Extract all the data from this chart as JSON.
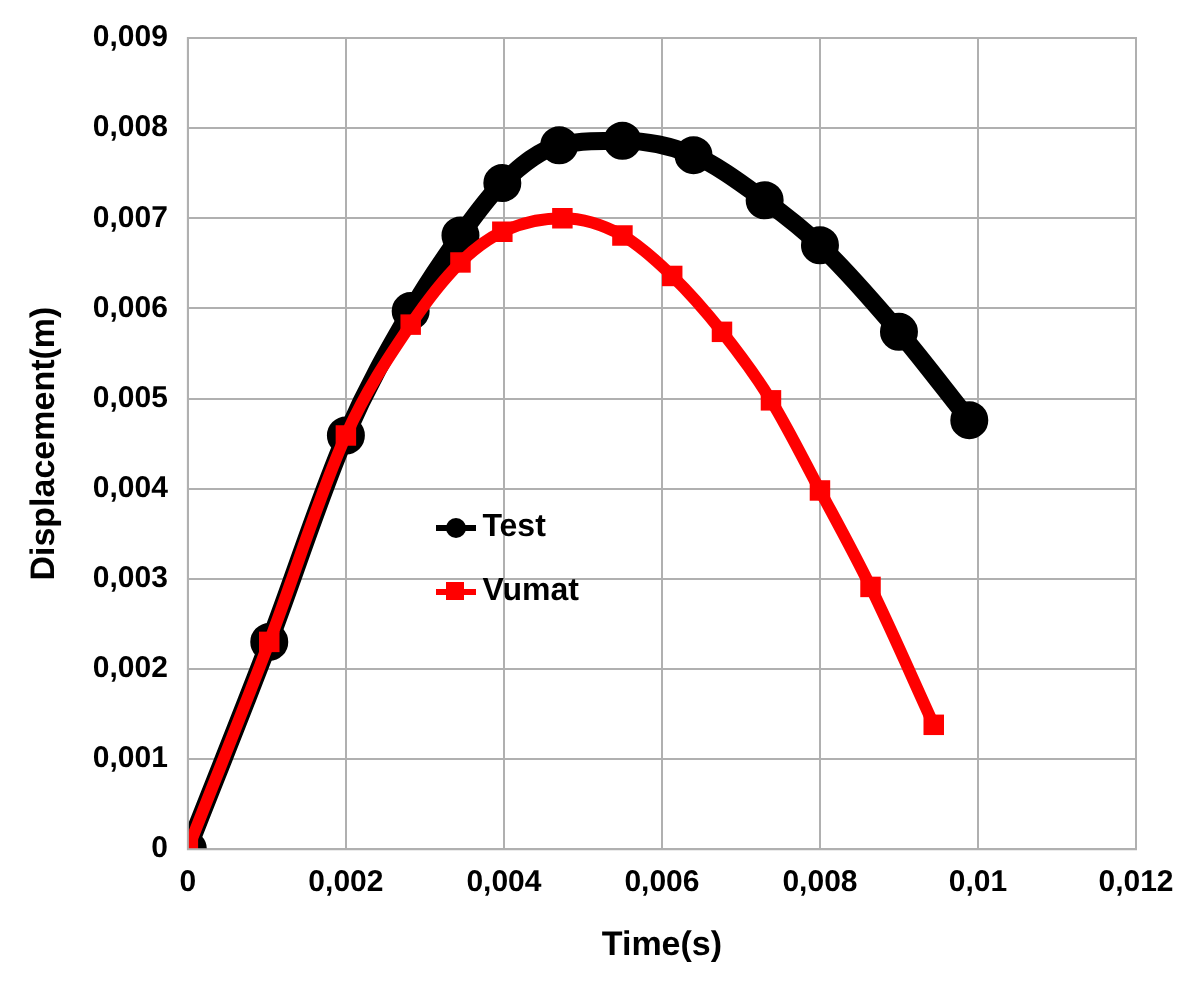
{
  "chart_data": {
    "type": "line",
    "xlabel": "Time(s)",
    "ylabel": "Displacement(m)",
    "xlim": [
      0,
      0.012
    ],
    "xticks": [
      0,
      {
        "value": 0.002,
        "label": "0,002"
      },
      {
        "value": 0.004,
        "label": "0,004"
      },
      {
        "value": 0.006,
        "label": "0,006"
      },
      {
        "value": 0.008,
        "label": "0,008"
      },
      {
        "value": 0.01,
        "label": "0,01"
      },
      {
        "value": 0.012,
        "label": "0,012"
      }
    ],
    "ylim": [
      0,
      0.009
    ],
    "yticks": [
      0,
      {
        "value": 0.001,
        "label": "0,001"
      },
      {
        "value": 0.002,
        "label": "0,002"
      },
      {
        "value": 0.003,
        "label": "0,003"
      },
      {
        "value": 0.004,
        "label": "0,004"
      },
      {
        "value": 0.005,
        "label": "0,005"
      },
      {
        "value": 0.006,
        "label": "0,006"
      },
      {
        "value": 0.007,
        "label": "0,007"
      },
      {
        "value": 0.008,
        "label": "0,008"
      },
      {
        "value": 0.009,
        "label": "0,009"
      }
    ],
    "grid": true,
    "legend": "center",
    "line_style": "solid",
    "series": [
      {
        "name": "Test",
        "color": "#000000",
        "marker": "circle",
        "x": [
          0,
          0.00103,
          0.002,
          0.00282,
          0.00345,
          0.00398,
          0.0047,
          0.0055,
          0.0064,
          0.0073,
          0.008,
          0.009,
          0.00989
        ],
        "values": [
          0,
          0.0023,
          0.00459,
          0.00597,
          0.00681,
          0.00739,
          0.00781,
          0.00786,
          0.0077,
          0.0072,
          0.0067,
          0.00574,
          0.00476
        ]
      },
      {
        "name": "Vumat",
        "color": "#ff0000",
        "marker": "square",
        "x": [
          0,
          0.00103,
          0.002,
          0.00282,
          0.00345,
          0.00398,
          0.00474,
          0.0055,
          0.00613,
          0.00676,
          0.00738,
          0.008,
          0.00864,
          0.00944
        ],
        "values": [
          0,
          0.0023,
          0.00459,
          0.00582,
          0.00651,
          0.00685,
          0.007,
          0.00681,
          0.00636,
          0.00574,
          0.00498,
          0.00398,
          0.00291,
          0.00138
        ]
      }
    ]
  }
}
